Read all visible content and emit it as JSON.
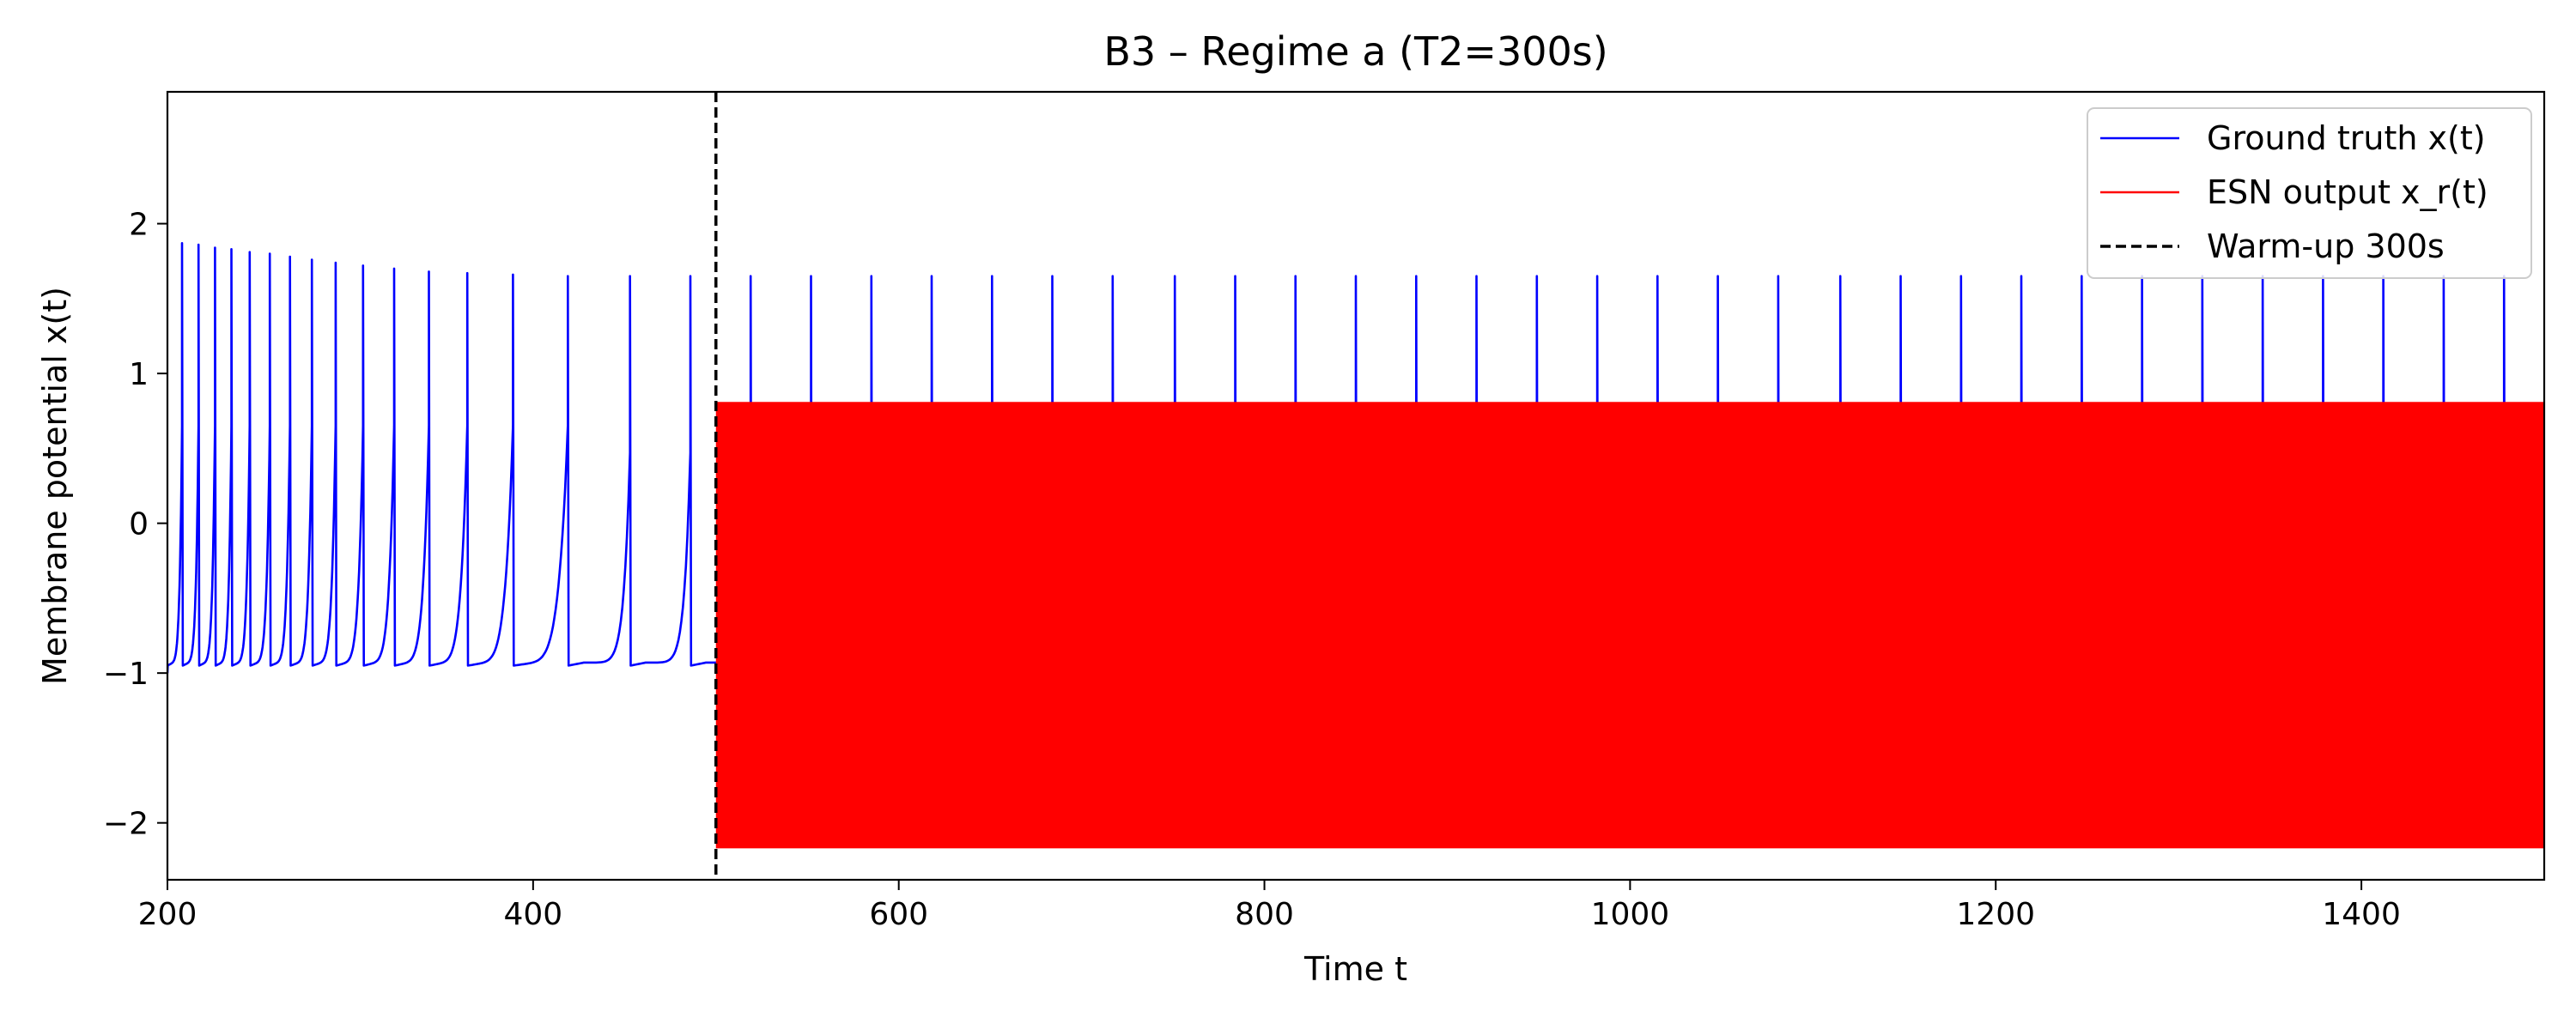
{
  "chart_data": {
    "type": "line",
    "title": "B3 – Regime a (T2=300s)",
    "xlabel": "Time t",
    "ylabel": "Membrane potential x(t)",
    "xlim": [
      200,
      1500
    ],
    "ylim": [
      -2.38,
      2.88
    ],
    "xticks": [
      200,
      400,
      600,
      800,
      1000,
      1200,
      1400
    ],
    "xtick_labels": [
      "200",
      "400",
      "600",
      "800",
      "1000",
      "1200",
      "1400"
    ],
    "yticks": [
      -2,
      -1,
      0,
      1,
      2
    ],
    "ytick_labels": [
      "−2",
      "−1",
      "0",
      "1",
      "2"
    ],
    "grid": false,
    "legend_position": "top-right",
    "series": [
      {
        "name": "Ground truth x(t)",
        "color": "#0000ff",
        "style": "solid",
        "kind": "spike-train",
        "spikes": [
          {
            "t": 208,
            "peak": 1.87
          },
          {
            "t": 217,
            "peak": 1.86
          },
          {
            "t": 226,
            "peak": 1.84
          },
          {
            "t": 235,
            "peak": 1.83
          },
          {
            "t": 245,
            "peak": 1.81
          },
          {
            "t": 256,
            "peak": 1.8
          },
          {
            "t": 267,
            "peak": 1.78
          },
          {
            "t": 279,
            "peak": 1.76
          },
          {
            "t": 292,
            "peak": 1.74
          },
          {
            "t": 307,
            "peak": 1.72
          },
          {
            "t": 324,
            "peak": 1.7
          },
          {
            "t": 343,
            "peak": 1.68
          },
          {
            "t": 364,
            "peak": 1.67
          },
          {
            "t": 389,
            "peak": 1.66
          },
          {
            "t": 419,
            "peak": 1.65
          },
          {
            "t": 453,
            "peak": 1.65
          },
          {
            "t": 486,
            "peak": 1.65
          },
          {
            "t": 519,
            "peak": 1.65
          },
          {
            "t": 552,
            "peak": 1.65
          },
          {
            "t": 585,
            "peak": 1.65
          },
          {
            "t": 618,
            "peak": 1.65
          },
          {
            "t": 651,
            "peak": 1.65
          },
          {
            "t": 684,
            "peak": 1.65
          },
          {
            "t": 717,
            "peak": 1.65
          },
          {
            "t": 751,
            "peak": 1.65
          },
          {
            "t": 784,
            "peak": 1.65
          },
          {
            "t": 817,
            "peak": 1.65
          },
          {
            "t": 850,
            "peak": 1.65
          },
          {
            "t": 883,
            "peak": 1.65
          },
          {
            "t": 916,
            "peak": 1.65
          },
          {
            "t": 949,
            "peak": 1.65
          },
          {
            "t": 982,
            "peak": 1.65
          },
          {
            "t": 1015,
            "peak": 1.65
          },
          {
            "t": 1048,
            "peak": 1.65
          },
          {
            "t": 1081,
            "peak": 1.65
          },
          {
            "t": 1115,
            "peak": 1.65
          },
          {
            "t": 1148,
            "peak": 1.65
          },
          {
            "t": 1181,
            "peak": 1.65
          },
          {
            "t": 1214,
            "peak": 1.65
          },
          {
            "t": 1247,
            "peak": 1.65
          },
          {
            "t": 1280,
            "peak": 1.65
          },
          {
            "t": 1313,
            "peak": 1.65
          },
          {
            "t": 1346,
            "peak": 1.65
          },
          {
            "t": 1379,
            "peak": 1.65
          },
          {
            "t": 1412,
            "peak": 1.65
          },
          {
            "t": 1445,
            "peak": 1.65
          },
          {
            "t": 1478,
            "peak": 1.65
          }
        ],
        "baseline_min": -0.95,
        "baseline_rest": -0.93
      },
      {
        "name": "ESN output x_r(t)",
        "color": "#ff0000",
        "style": "solid",
        "kind": "dense-oscillation",
        "t_start": 500,
        "t_end": 1500,
        "min": -2.17,
        "max": 0.81
      },
      {
        "name": "Warm-up 300s",
        "color": "#000000",
        "style": "dashed",
        "kind": "vertical-line",
        "x": 500
      }
    ]
  }
}
